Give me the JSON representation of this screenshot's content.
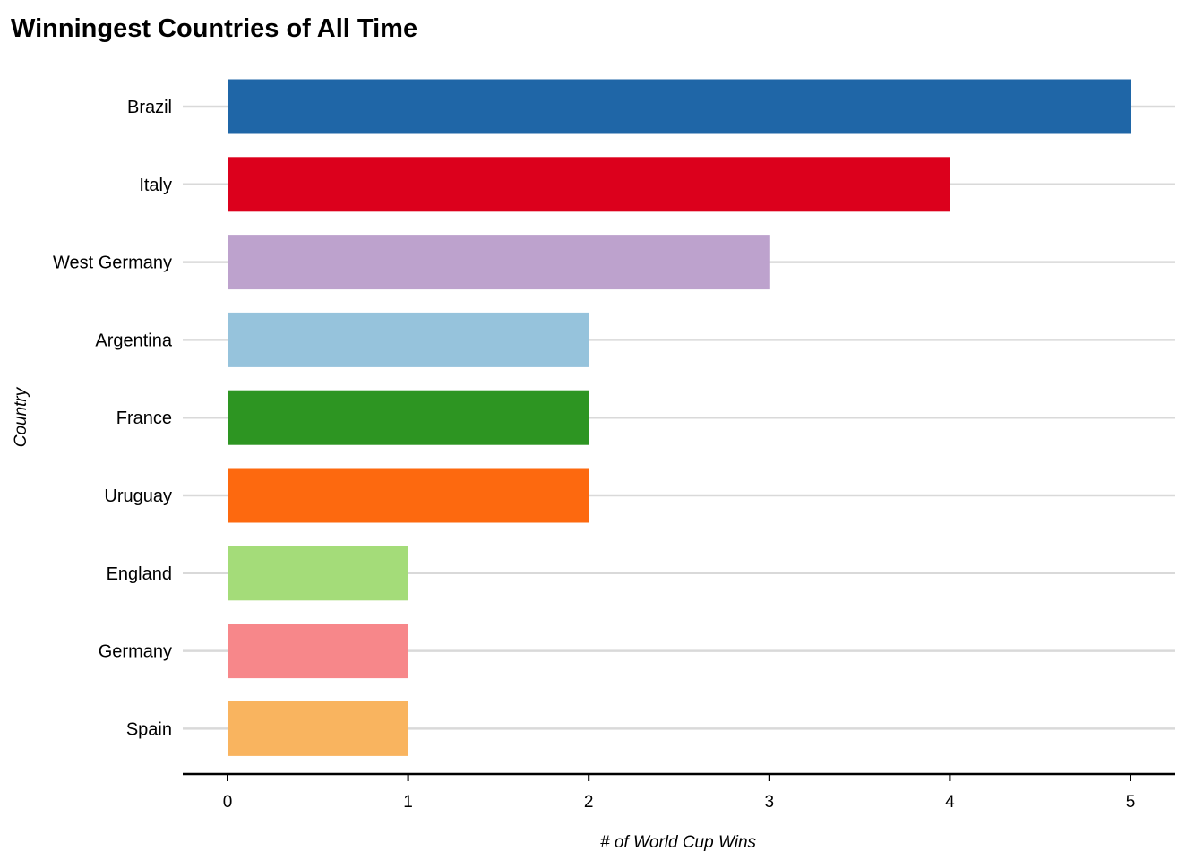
{
  "chart_data": {
    "type": "bar",
    "orientation": "horizontal",
    "title": "Winningest Countries of All Time",
    "xlabel": "# of World Cup Wins",
    "ylabel": "Country",
    "xlim": [
      0,
      5
    ],
    "xticks": [
      "0",
      "1",
      "2",
      "3",
      "4",
      "5"
    ],
    "grid": "horizontal gridlines at each category",
    "legend": "none",
    "categories": [
      "Brazil",
      "Italy",
      "West Germany",
      "Argentina",
      "France",
      "Uruguay",
      "England",
      "Germany",
      "Spain"
    ],
    "values": [
      5,
      4,
      3,
      2,
      2,
      2,
      1,
      1,
      1
    ],
    "colors": [
      "#1f66a7",
      "#dc001c",
      "#bda2cd",
      "#96c3dc",
      "#2d9522",
      "#fd690f",
      "#a4dc79",
      "#f7878a",
      "#f9b45f"
    ]
  }
}
